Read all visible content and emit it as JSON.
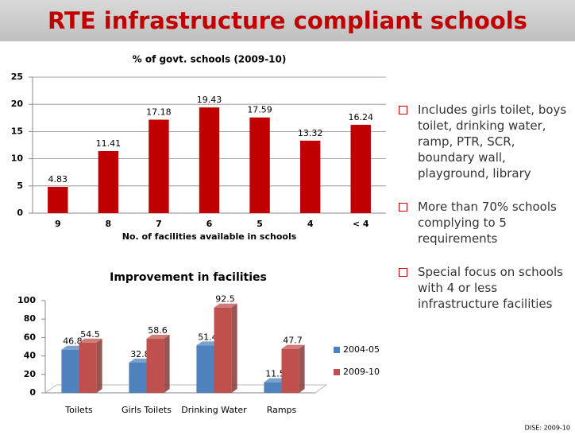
{
  "title": "RTE infrastructure compliant schools",
  "chart_data": [
    {
      "type": "bar",
      "title": "% of govt. schools (2009-10)",
      "x_label": "No. of facilities available in schools",
      "categories": [
        "9",
        "8",
        "7",
        "6",
        "5",
        "4",
        "< 4"
      ],
      "values": [
        4.83,
        11.41,
        17.18,
        19.43,
        17.59,
        13.32,
        16.24
      ],
      "color": "#c00000",
      "ylim": [
        0,
        25
      ],
      "yticks": [
        0,
        5,
        10,
        15,
        20,
        25
      ],
      "grid": true
    },
    {
      "type": "bar3d",
      "title": "Improvement in facilities",
      "categories": [
        "Toilets",
        "Girls Toilets",
        "Drinking Water",
        "Ramps"
      ],
      "series": [
        {
          "name": "2004-05",
          "color": "#4f81bd",
          "values": [
            46.8,
            32.8,
            51.4,
            11.5
          ]
        },
        {
          "name": "2009-10",
          "color": "#c0504d",
          "values": [
            54.5,
            58.6,
            92.5,
            47.7
          ]
        }
      ],
      "ylim": [
        0,
        100
      ],
      "yticks": [
        0,
        20,
        40,
        60,
        80,
        100
      ],
      "grid": false,
      "legend": "right"
    }
  ],
  "bullets": [
    "Includes girls toilet, boys toilet, drinking water, ramp, PTR, SCR, boundary wall, playground, library",
    "More than 70% schools complying to 5 requirements",
    "Special focus on schools with 4 or less infrastructure facilities"
  ],
  "source": "DISE: 2009-10"
}
